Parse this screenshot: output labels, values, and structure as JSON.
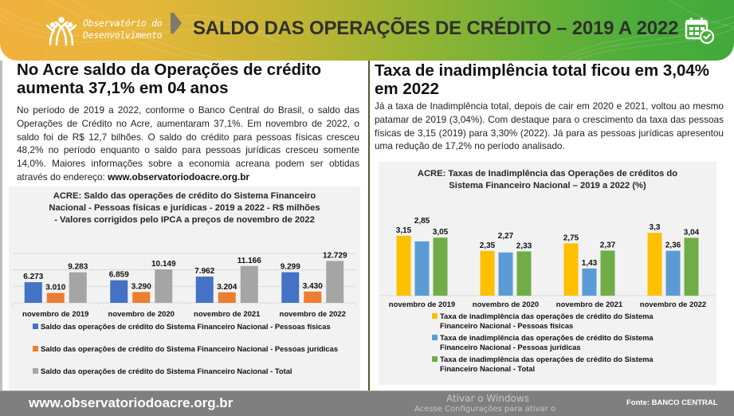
{
  "header": {
    "logo_line1": "Observatório do",
    "logo_line2": "Desenvolvimento",
    "title": "SALDO DAS OPERAÇÕES DE CRÉDITO – 2019 A 2022",
    "icon": "calendar-check-icon"
  },
  "left": {
    "title": "No Acre saldo da Operações de crédito aumenta 37,1% em 04 anos",
    "paragraph": "No período de 2019 a 2022, conforme o Banco Central do Brasil, o saldo das Operações de Crédito no Acre, aumentaram 37,1%. Em novembro de 2022, o saldo foi de R$ 12,7 bilhões. O saldo do crédito para pessoas físicas cresceu 48,2% no período enquanto o saldo para pessoas jurídicas cresceu somente 14,0%. Maiores informações sobre a economia acreana podem ser obtidas através do endereço: ",
    "paragraph_link": "www.observatoriodoacre.org.br"
  },
  "right": {
    "title": "Taxa de inadimplência total ficou em 3,04% em 2022",
    "paragraph": "Já a taxa de Inadimplência total, depois de cair em 2020 e 2021, voltou ao mesmo patamar de 2019 (3,04%). Com destaque para o crescimento da taxa das pessoas físicas de 3,15 (2019) para 3,30% (2022). Já para as pessoas jurídicas apresentou uma redução de 17,2% no período analisado."
  },
  "chart_data": [
    {
      "type": "bar",
      "title": "ACRE: Saldo das operações de crédito do Sistema Financeiro Nacional - Pessoas físicas e jurídicas - 2019 a 2022 -  R$ milhões - Valores corrigidos pelo IPCA a preços de novembro de 2022",
      "title_lines": [
        "ACRE: Saldo das operações de crédito do Sistema Financeiro",
        "Nacional - Pessoas físicas e jurídicas - 2019 a 2022 -  R$ milhões",
        "- Valores corrigidos pelo IPCA a preços de novembro de 2022"
      ],
      "xlabel": "",
      "ylabel": "",
      "ylim": [
        0,
        15000
      ],
      "grid": true,
      "legend_position": "bottom",
      "categories": [
        "novembro de 2019",
        "novembro de 2020",
        "novembro de 2021",
        "novembro de 2022"
      ],
      "series": [
        {
          "name": "Saldo das operações de crédito do Sistema Financeiro Nacional - Pessoas físicas",
          "color": "#4472c4",
          "values": [
            6273,
            6859,
            7962,
            9299
          ],
          "labels": [
            "6.273",
            "6.859",
            "7.962",
            "9.299"
          ]
        },
        {
          "name": "Saldo das operações de crédito do Sistema Financeiro Nacional  -  Pessoas jurídicas",
          "color": "#ed7d31",
          "values": [
            3010,
            3290,
            3204,
            3430
          ],
          "labels": [
            "3.010",
            "3.290",
            "3.204",
            "3.430"
          ]
        },
        {
          "name": "Saldo das operações de crédito do Sistema Financeiro Nacional - Total",
          "color": "#a5a5a5",
          "values": [
            9283,
            10149,
            11166,
            12729
          ],
          "labels": [
            "9.283",
            "10.149",
            "11.166",
            "12.729"
          ]
        }
      ]
    },
    {
      "type": "bar",
      "title": "ACRE: Taxas de Inadimplência das Operações de créditos do Sistema Financeiro Nacional – 2019 a 2022 (%)",
      "title_lines": [
        "ACRE: Taxas de Inadimplência das Operações de créditos do",
        "Sistema Financeiro Nacional – 2019 a 2022 (%)"
      ],
      "xlabel": "",
      "ylabel": "",
      "ylim": [
        0,
        3.6
      ],
      "grid": false,
      "legend_position": "bottom",
      "categories": [
        "novembro de 2019",
        "novembro de 2020",
        "novembro de 2021",
        "novembro de 2022"
      ],
      "series": [
        {
          "name": "Taxa de inadimplência das operações de crédito do Sistema Financeiro Nacional  -  Pessoas físicas",
          "name_lines": [
            "Taxa de inadimplência das operações de crédito do Sistema",
            "Financeiro Nacional  -  Pessoas físicas"
          ],
          "color": "#ffc000",
          "values": [
            3.15,
            2.35,
            2.75,
            3.3
          ],
          "labels": [
            "3,15",
            "2,35",
            "2,75",
            "3,3"
          ]
        },
        {
          "name": "Taxa de inadimplência das operações de crédito do Sistema Financeiro Nacional - Pessoas jurídicas",
          "name_lines": [
            "Taxa de inadimplência das operações de crédito do Sistema",
            "Financeiro Nacional - Pessoas jurídicas"
          ],
          "color": "#5b9bd5",
          "values": [
            2.85,
            2.27,
            1.43,
            2.36
          ],
          "labels": [
            "2,85",
            "2,27",
            "1,43",
            "2,36"
          ]
        },
        {
          "name": "Taxa de inadimplência das operações de crédito do Sistema Financeiro Nacional - Total",
          "name_lines": [
            "Taxa de inadimplência das operações de crédito do Sistema",
            "Financeiro Nacional - Total"
          ],
          "color": "#70ad47",
          "values": [
            3.05,
            2.33,
            2.37,
            3.04
          ],
          "labels": [
            "3,05",
            "2,33",
            "2,37",
            "3,04"
          ]
        }
      ]
    }
  ],
  "footer": {
    "url": "www.observatoriodoacre.org.br",
    "source": "Fonte: BANCO CENTRAL",
    "watermark_line1": "Ativar o Windows",
    "watermark_line2": "Acesse Configurações para ativar o"
  }
}
